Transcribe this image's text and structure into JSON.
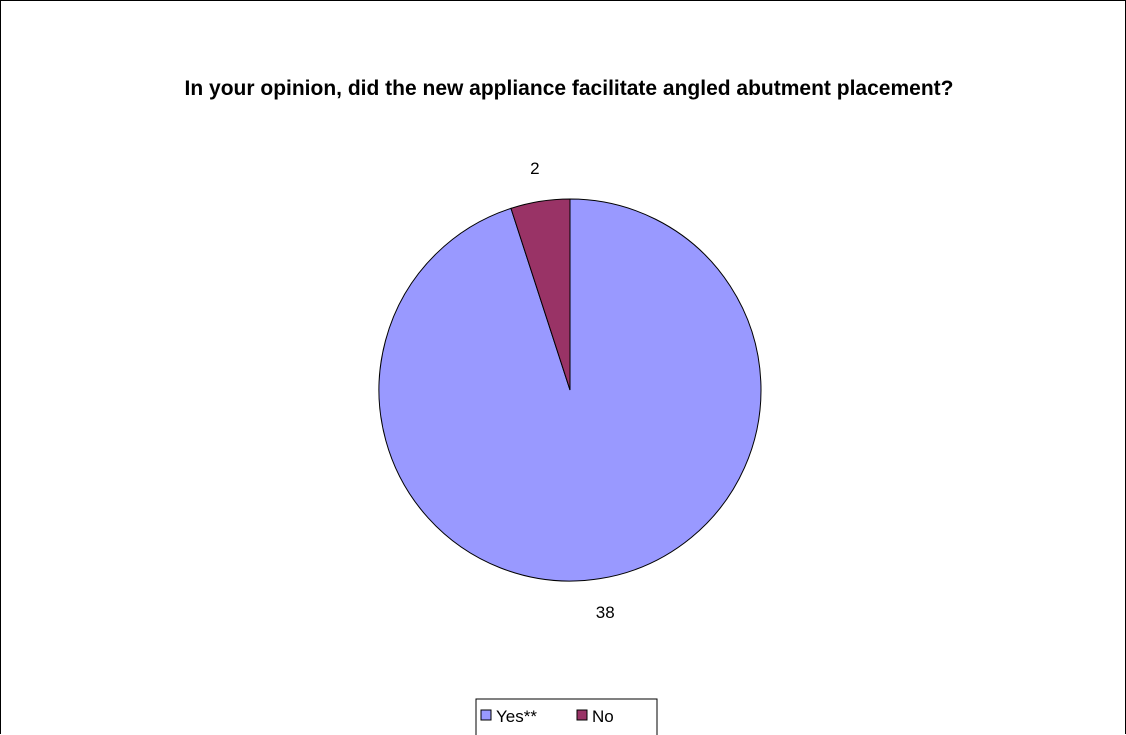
{
  "chart_data": {
    "type": "pie",
    "title": "In your opinion, did the new appliance facilitate angled abutment placement?",
    "categories": [
      "Yes**",
      "No"
    ],
    "values": [
      38,
      2
    ],
    "colors": [
      "#9999ff",
      "#993366"
    ],
    "data_labels": [
      "38",
      "2"
    ],
    "start_angle_deg": 0,
    "direction": "clockwise",
    "legend": {
      "position": "bottom",
      "entries": [
        "Yes**",
        "No"
      ]
    }
  }
}
